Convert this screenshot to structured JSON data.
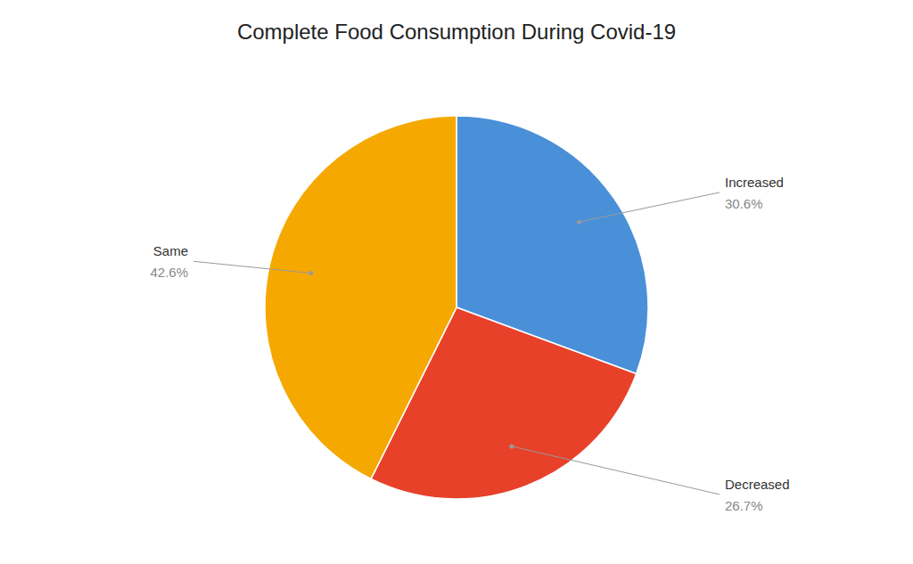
{
  "chart_data": {
    "type": "pie",
    "title": "Complete Food Consumption During Covid-19",
    "categories": [
      "Increased",
      "Decreased",
      "Same"
    ],
    "values": [
      30.6,
      26.7,
      42.6
    ],
    "value_labels": [
      "30.6%",
      "26.7%",
      "42.6%"
    ],
    "colors": [
      "#4A90D9",
      "#E8412A",
      "#F5A800"
    ],
    "data_labels": true
  }
}
